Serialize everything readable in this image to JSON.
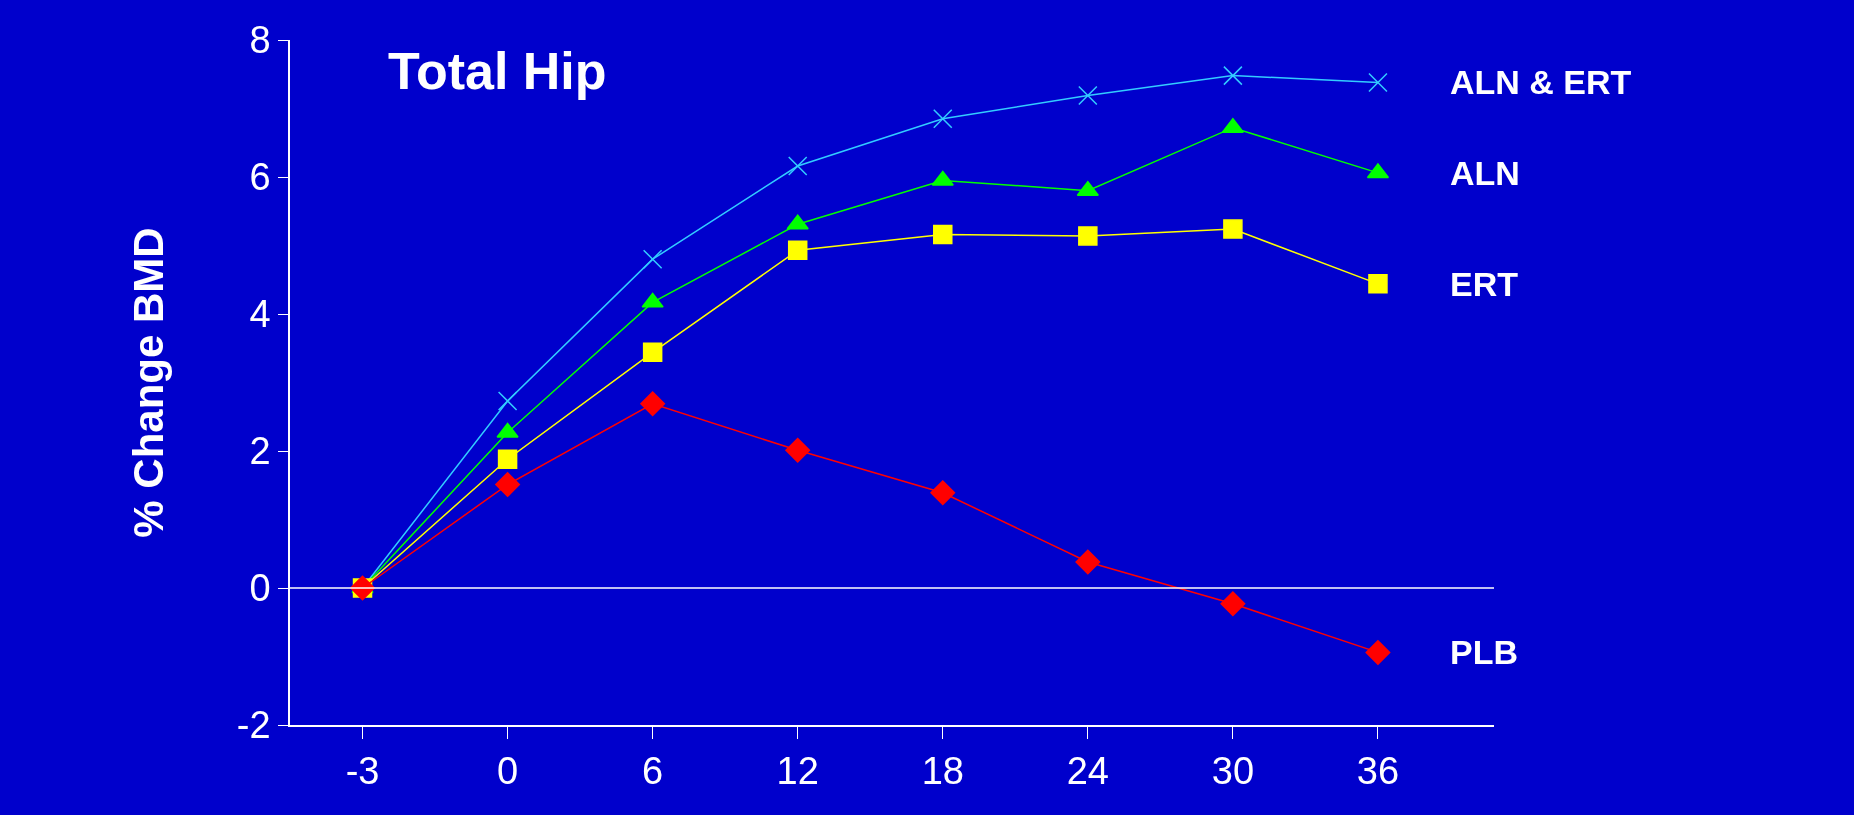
{
  "chart_data": {
    "type": "line",
    "title": "Total Hip",
    "ylabel": "% Change BMD",
    "categories": [
      "-3",
      "0",
      "6",
      "12",
      "18",
      "24",
      "30",
      "36"
    ],
    "series": [
      {
        "name": "ALN & ERT",
        "color": "#33ccff",
        "marker": "cross",
        "values": [
          0,
          2.73,
          4.8,
          6.16,
          6.85,
          7.19,
          7.48,
          7.38
        ]
      },
      {
        "name": "ALN",
        "color": "#00ff00",
        "marker": "triangle",
        "values": [
          0,
          2.27,
          4.17,
          5.31,
          5.95,
          5.8,
          6.72,
          6.06
        ]
      },
      {
        "name": "ERT",
        "color": "#ffff00",
        "marker": "square",
        "values": [
          0,
          1.88,
          3.44,
          4.93,
          5.16,
          5.14,
          5.24,
          4.44
        ]
      },
      {
        "name": "PLB",
        "color": "#ff0000",
        "marker": "diamond",
        "values": [
          0,
          1.51,
          2.69,
          2.01,
          1.39,
          0.38,
          -0.23,
          -0.94
        ]
      }
    ],
    "ylim": [
      -2,
      8
    ],
    "yticks": [
      -2,
      0,
      2,
      4,
      6,
      8
    ],
    "ref_lines": [
      {
        "axis": "y",
        "value": 0,
        "color": "#ffffff"
      }
    ],
    "grid": false,
    "legend": false
  }
}
